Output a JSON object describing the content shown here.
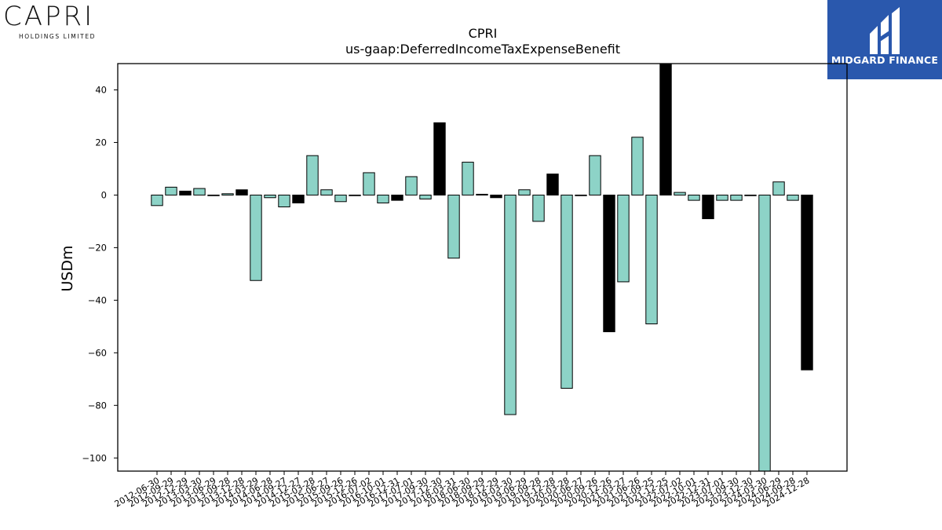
{
  "logos": {
    "left": {
      "name": "CAPRI",
      "subtitle": "HOLDINGS LIMITED"
    },
    "right": {
      "name": "MIDGARD FINANCE"
    }
  },
  "chart_data": {
    "type": "bar",
    "title": "CPRI",
    "subtitle": "us-gaap:DeferredIncomeTaxExpenseBenefit",
    "xlabel": "",
    "ylabel": "USDm",
    "ylim": [
      -105,
      50
    ],
    "yticks": [
      40,
      20,
      0,
      -20,
      -40,
      -60,
      -80,
      -100
    ],
    "grid": false,
    "colors": {
      "quarter": "#8dd3c7",
      "year_end": "#000000",
      "edge": "#000000"
    },
    "categories": [
      "2012-06-30",
      "2012-09-29",
      "2012-12-29",
      "2013-03-30",
      "2013-06-29",
      "2013-09-28",
      "2013-12-28",
      "2014-03-29",
      "2014-06-28",
      "2014-09-27",
      "2014-12-27",
      "2015-03-28",
      "2015-06-27",
      "2015-09-26",
      "2015-12-26",
      "2016-07-02",
      "2016-10-01",
      "2016-12-31",
      "2017-07-01",
      "2017-09-30",
      "2017-12-30",
      "2018-03-31",
      "2018-06-30",
      "2018-09-29",
      "2018-12-29",
      "2019-03-30",
      "2019-06-29",
      "2019-09-28",
      "2019-12-28",
      "2020-03-28",
      "2020-06-27",
      "2020-09-26",
      "2020-12-26",
      "2021-03-27",
      "2021-06-26",
      "2021-09-25",
      "2021-12-25",
      "2022-07-02",
      "2022-10-01",
      "2022-12-31",
      "2023-07-01",
      "2023-09-30",
      "2023-12-30",
      "2024-03-30",
      "2024-06-29",
      "2024-09-28",
      "2024-12-28"
    ],
    "values": [
      -4,
      3,
      1.5,
      2.5,
      0,
      0.5,
      2,
      -32.5,
      -1,
      -4.5,
      -3,
      15,
      2,
      -2.5,
      0,
      8.5,
      -3,
      -2,
      7,
      -1.5,
      27.5,
      -24,
      12.5,
      0.3,
      -1,
      -83.5,
      2,
      -10,
      8,
      -73.5,
      0,
      15,
      -52,
      -33,
      22,
      -49,
      52,
      1,
      -2,
      -9,
      -2,
      -2,
      0,
      -107,
      5,
      -2,
      -66.5
    ],
    "year_end_flags": [
      0,
      0,
      1,
      0,
      0,
      0,
      1,
      0,
      0,
      0,
      1,
      0,
      0,
      0,
      0,
      0,
      0,
      1,
      0,
      0,
      1,
      0,
      0,
      0,
      1,
      0,
      0,
      0,
      1,
      0,
      0,
      0,
      1,
      0,
      0,
      0,
      1,
      0,
      0,
      1,
      0,
      0,
      0,
      0,
      0,
      0,
      1
    ]
  }
}
